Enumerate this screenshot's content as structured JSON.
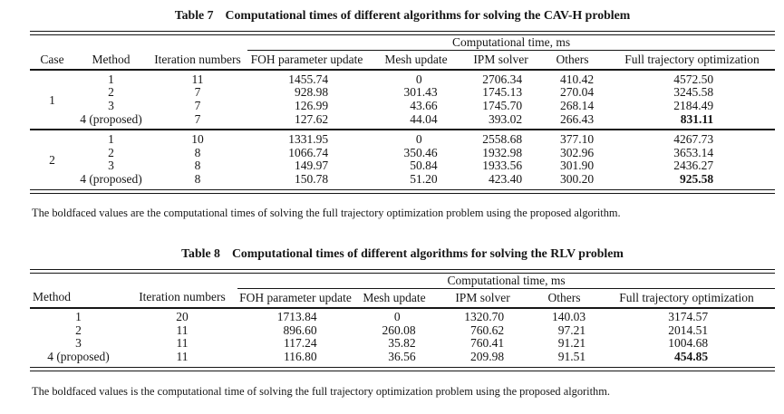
{
  "table7": {
    "title_label": "Table 7",
    "title_text": "Computational times of different algorithms for solving the CAV-H problem",
    "spanner": "Computational time, ms",
    "columns": [
      "Case",
      "Method",
      "Iteration numbers",
      "FOH parameter update",
      "Mesh update",
      "IPM solver",
      "Others",
      "Full trajectory optimization"
    ],
    "groups": [
      {
        "case": "1",
        "rows": [
          {
            "method": "1",
            "iterations": "11",
            "foh": "1455.74",
            "mesh": "0",
            "ipm": "2706.34",
            "others": "410.42",
            "full": "4572.50",
            "bold": false
          },
          {
            "method": "2",
            "iterations": "7",
            "foh": "928.98",
            "mesh": "301.43",
            "ipm": "1745.13",
            "others": "270.04",
            "full": "3245.58",
            "bold": false
          },
          {
            "method": "3",
            "iterations": "7",
            "foh": "126.99",
            "mesh": "43.66",
            "ipm": "1745.70",
            "others": "268.14",
            "full": "2184.49",
            "bold": false
          },
          {
            "method": "4 (proposed)",
            "iterations": "7",
            "foh": "127.62",
            "mesh": "44.04",
            "ipm": "393.02",
            "others": "266.43",
            "full": "831.11",
            "bold": true
          }
        ]
      },
      {
        "case": "2",
        "rows": [
          {
            "method": "1",
            "iterations": "10",
            "foh": "1331.95",
            "mesh": "0",
            "ipm": "2558.68",
            "others": "377.10",
            "full": "4267.73",
            "bold": false
          },
          {
            "method": "2",
            "iterations": "8",
            "foh": "1066.74",
            "mesh": "350.46",
            "ipm": "1932.98",
            "others": "302.96",
            "full": "3653.14",
            "bold": false
          },
          {
            "method": "3",
            "iterations": "8",
            "foh": "149.97",
            "mesh": "50.84",
            "ipm": "1933.56",
            "others": "301.90",
            "full": "2436.27",
            "bold": false
          },
          {
            "method": "4 (proposed)",
            "iterations": "8",
            "foh": "150.78",
            "mesh": "51.20",
            "ipm": "423.40",
            "others": "300.20",
            "full": "925.58",
            "bold": true
          }
        ]
      }
    ],
    "footnote": "The boldfaced values are the computational times of solving the full trajectory optimization problem using the proposed algorithm."
  },
  "table8": {
    "title_label": "Table 8",
    "title_text": "Computational times of different algorithms for solving the RLV problem",
    "spanner": "Computational time, ms",
    "columns": [
      "Method",
      "Iteration numbers",
      "FOH parameter update",
      "Mesh update",
      "IPM solver",
      "Others",
      "Full trajectory optimization"
    ],
    "rows": [
      {
        "method": "1",
        "iterations": "20",
        "foh": "1713.84",
        "mesh": "0",
        "ipm": "1320.70",
        "others": "140.03",
        "full": "3174.57",
        "bold": false
      },
      {
        "method": "2",
        "iterations": "11",
        "foh": "896.60",
        "mesh": "260.08",
        "ipm": "760.62",
        "others": "97.21",
        "full": "2014.51",
        "bold": false
      },
      {
        "method": "3",
        "iterations": "11",
        "foh": "117.24",
        "mesh": "35.82",
        "ipm": "760.41",
        "others": "91.21",
        "full": "1004.68",
        "bold": false
      },
      {
        "method": "4 (proposed)",
        "iterations": "11",
        "foh": "116.80",
        "mesh": "36.56",
        "ipm": "209.98",
        "others": "91.51",
        "full": "454.85",
        "bold": true
      }
    ],
    "footnote": "The boldfaced values is the computational time of solving the full trajectory optimization problem using the proposed algorithm."
  }
}
